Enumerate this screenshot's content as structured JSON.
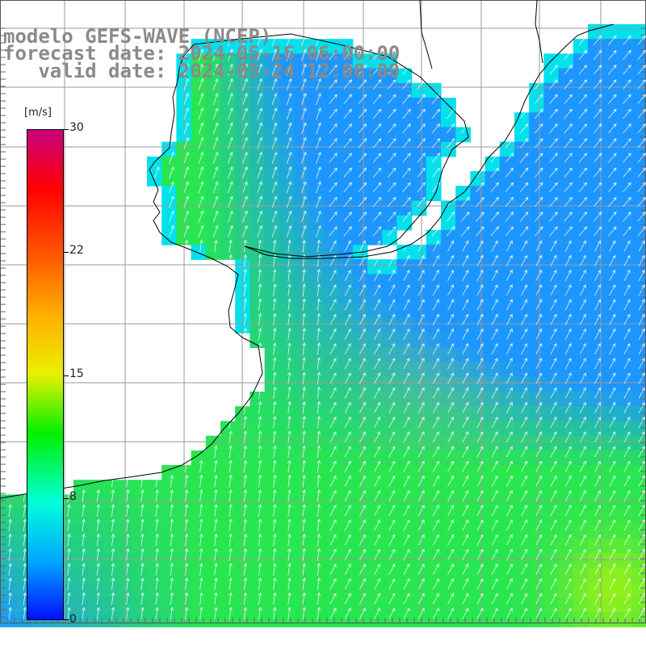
{
  "title": {
    "line1": "modelo GEFS-WAVE (NCEP)",
    "line2": "forecast date: 2024-05-16 06:00:00",
    "line3": "   valid date: 2024-05-24 12:00:00"
  },
  "colorbar": {
    "unit": "[m/s]",
    "ticks": [
      "30",
      "22",
      "15",
      "8",
      "0"
    ],
    "tick_values": [
      30,
      22,
      15,
      8,
      0
    ],
    "min": 0,
    "max": 30,
    "colors": [
      "#0000ff",
      "#00a0ff",
      "#00ffff",
      "#00ff00",
      "#ffff00",
      "#ff8000",
      "#ff0000",
      "#c80080"
    ]
  },
  "map": {
    "field": "wind speed",
    "dominant_direction": "from south-southwest (arrows pointing north-northeast)",
    "colors": {
      "land": "#ffffff",
      "grid": "#9a9a9a",
      "coastline": "#000000",
      "arrow": "#ffffff",
      "low_speed": "#2aa0ff",
      "mid_speed": "#22e860",
      "high_speed": "#b6f018"
    }
  }
}
